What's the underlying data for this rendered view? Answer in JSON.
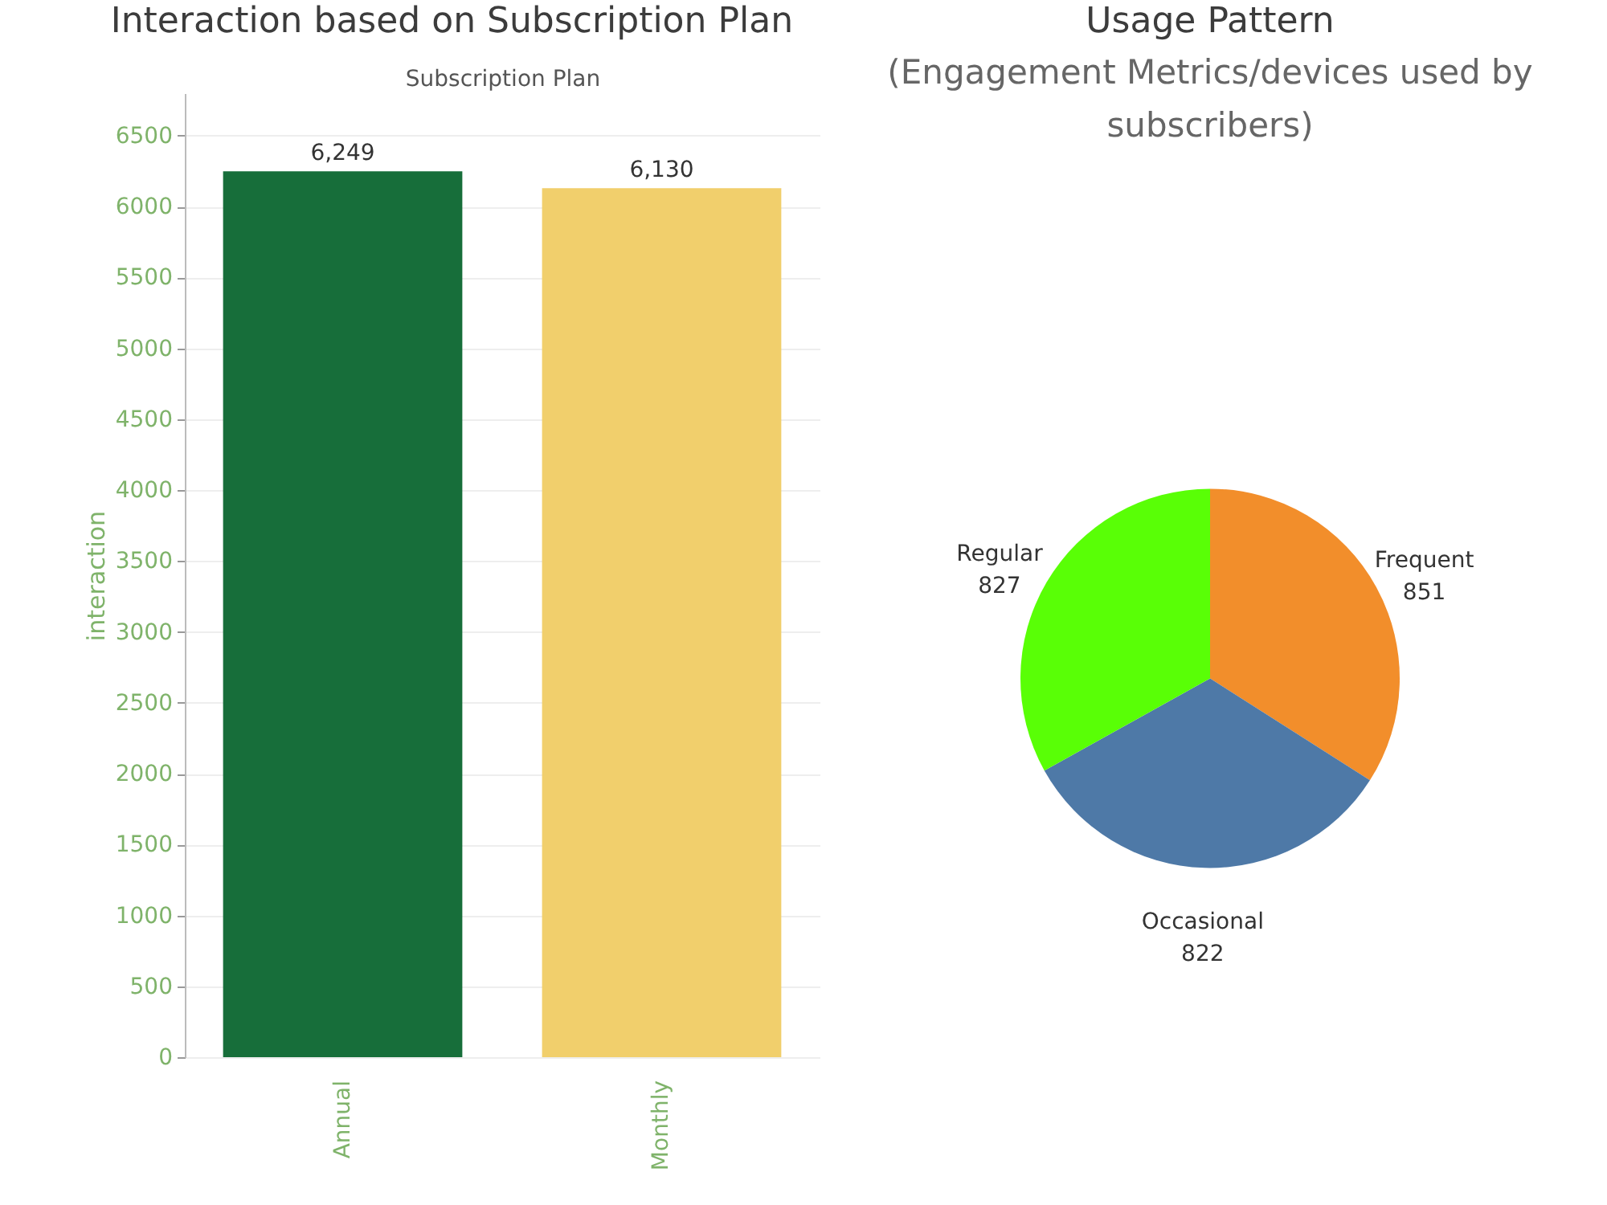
{
  "chart_data": [
    {
      "type": "bar",
      "title": "Interaction based on Subscription Plan",
      "xlabel": "Subscription Plan",
      "ylabel": "interaction",
      "categories": [
        "Annual",
        "Monthly"
      ],
      "values": [
        6249,
        6130
      ],
      "value_labels": [
        "6,249",
        "6,130"
      ],
      "colors": [
        "#176e3a",
        "#f1cf6c"
      ],
      "ylim": [
        0,
        6800
      ],
      "yticks": [
        0,
        500,
        1000,
        1500,
        2000,
        2500,
        3000,
        3500,
        4000,
        4500,
        5000,
        5500,
        6000,
        6500
      ],
      "grid": "y"
    },
    {
      "type": "pie",
      "title": "Usage Pattern",
      "subtitle": "(Engagement Metrics/devices used by subscribers)",
      "categories": [
        "Frequent",
        "Occasional",
        "Regular"
      ],
      "values": [
        851,
        822,
        827
      ],
      "colors": [
        "#f28e2b",
        "#4e79a7",
        "#59ff06"
      ],
      "data_labels": true
    }
  ]
}
